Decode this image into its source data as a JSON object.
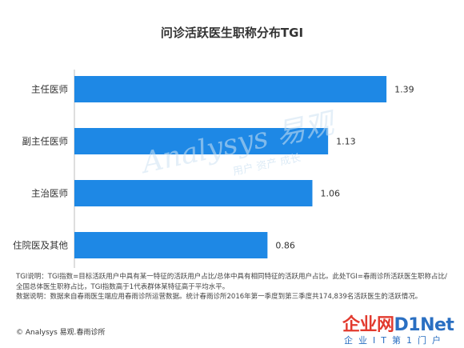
{
  "chart_data": {
    "type": "bar",
    "orientation": "horizontal",
    "title": "问诊活跃医生职称分布TGI",
    "categories": [
      "主任医师",
      "副主任医师",
      "主治医师",
      "住院医及其他"
    ],
    "values": [
      1.39,
      1.13,
      1.06,
      0.86
    ],
    "value_labels": [
      "1.39",
      "1.13",
      "1.06",
      "0.86"
    ],
    "xlim": [
      0,
      1.55
    ],
    "bar_color": "#1e88e5",
    "grid": false,
    "legend": "none"
  },
  "watermark": {
    "main": "Analysys 易观",
    "sub": "用户 资产 成长"
  },
  "notes": {
    "line1": "TGI说明：TGI指数=目标活跃用户中具有某一特征的活跃用户占比/总体中具有相同特征的活跃用户占比。此处TGI=春雨诊所活跃医生职称占比/全国总体医生职称占比，TGI指数高于1代表群体某特征高于平均水平。",
    "line2": "数据说明：数据来自春雨医生端应用春雨诊所运营数据。统计春雨诊所2016年第一季度到第三季度共174,839名活跃医生的活跃情况。"
  },
  "footer": {
    "copyright": "© Analysys 易观.春雨诊所"
  },
  "logo": {
    "main_cn": "企业网",
    "main_en": "D1Net",
    "sub": "企业IT第1门户"
  }
}
